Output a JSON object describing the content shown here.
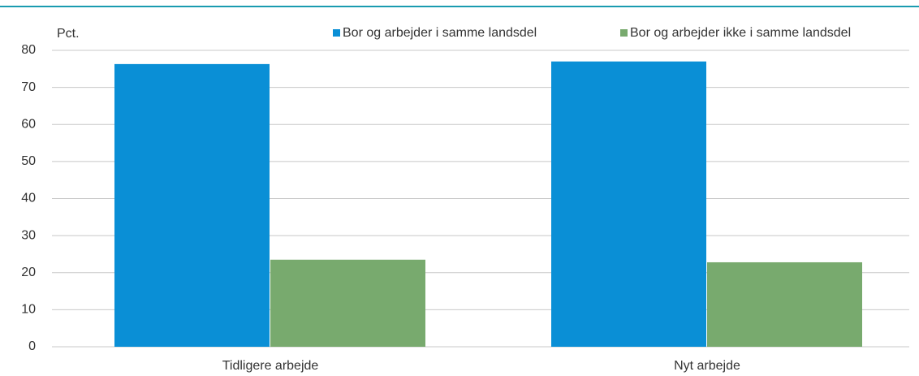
{
  "chart_data": {
    "type": "bar",
    "y_label": "Pct.",
    "categories": [
      "Tidligere arbejde",
      "Nyt arbejde"
    ],
    "series": [
      {
        "name": "Bor og arbejder i samme landsdel",
        "color": "#0a8fd6",
        "values": [
          76.3,
          77.0
        ]
      },
      {
        "name": "Bor og arbejder ikke i samme landsdel",
        "color": "#78aa6e",
        "values": [
          23.5,
          22.8
        ]
      }
    ],
    "ylim": [
      0,
      80
    ],
    "yticks": [
      0,
      10,
      20,
      30,
      40,
      50,
      60,
      70,
      80
    ],
    "grid": true,
    "legend": "top"
  }
}
